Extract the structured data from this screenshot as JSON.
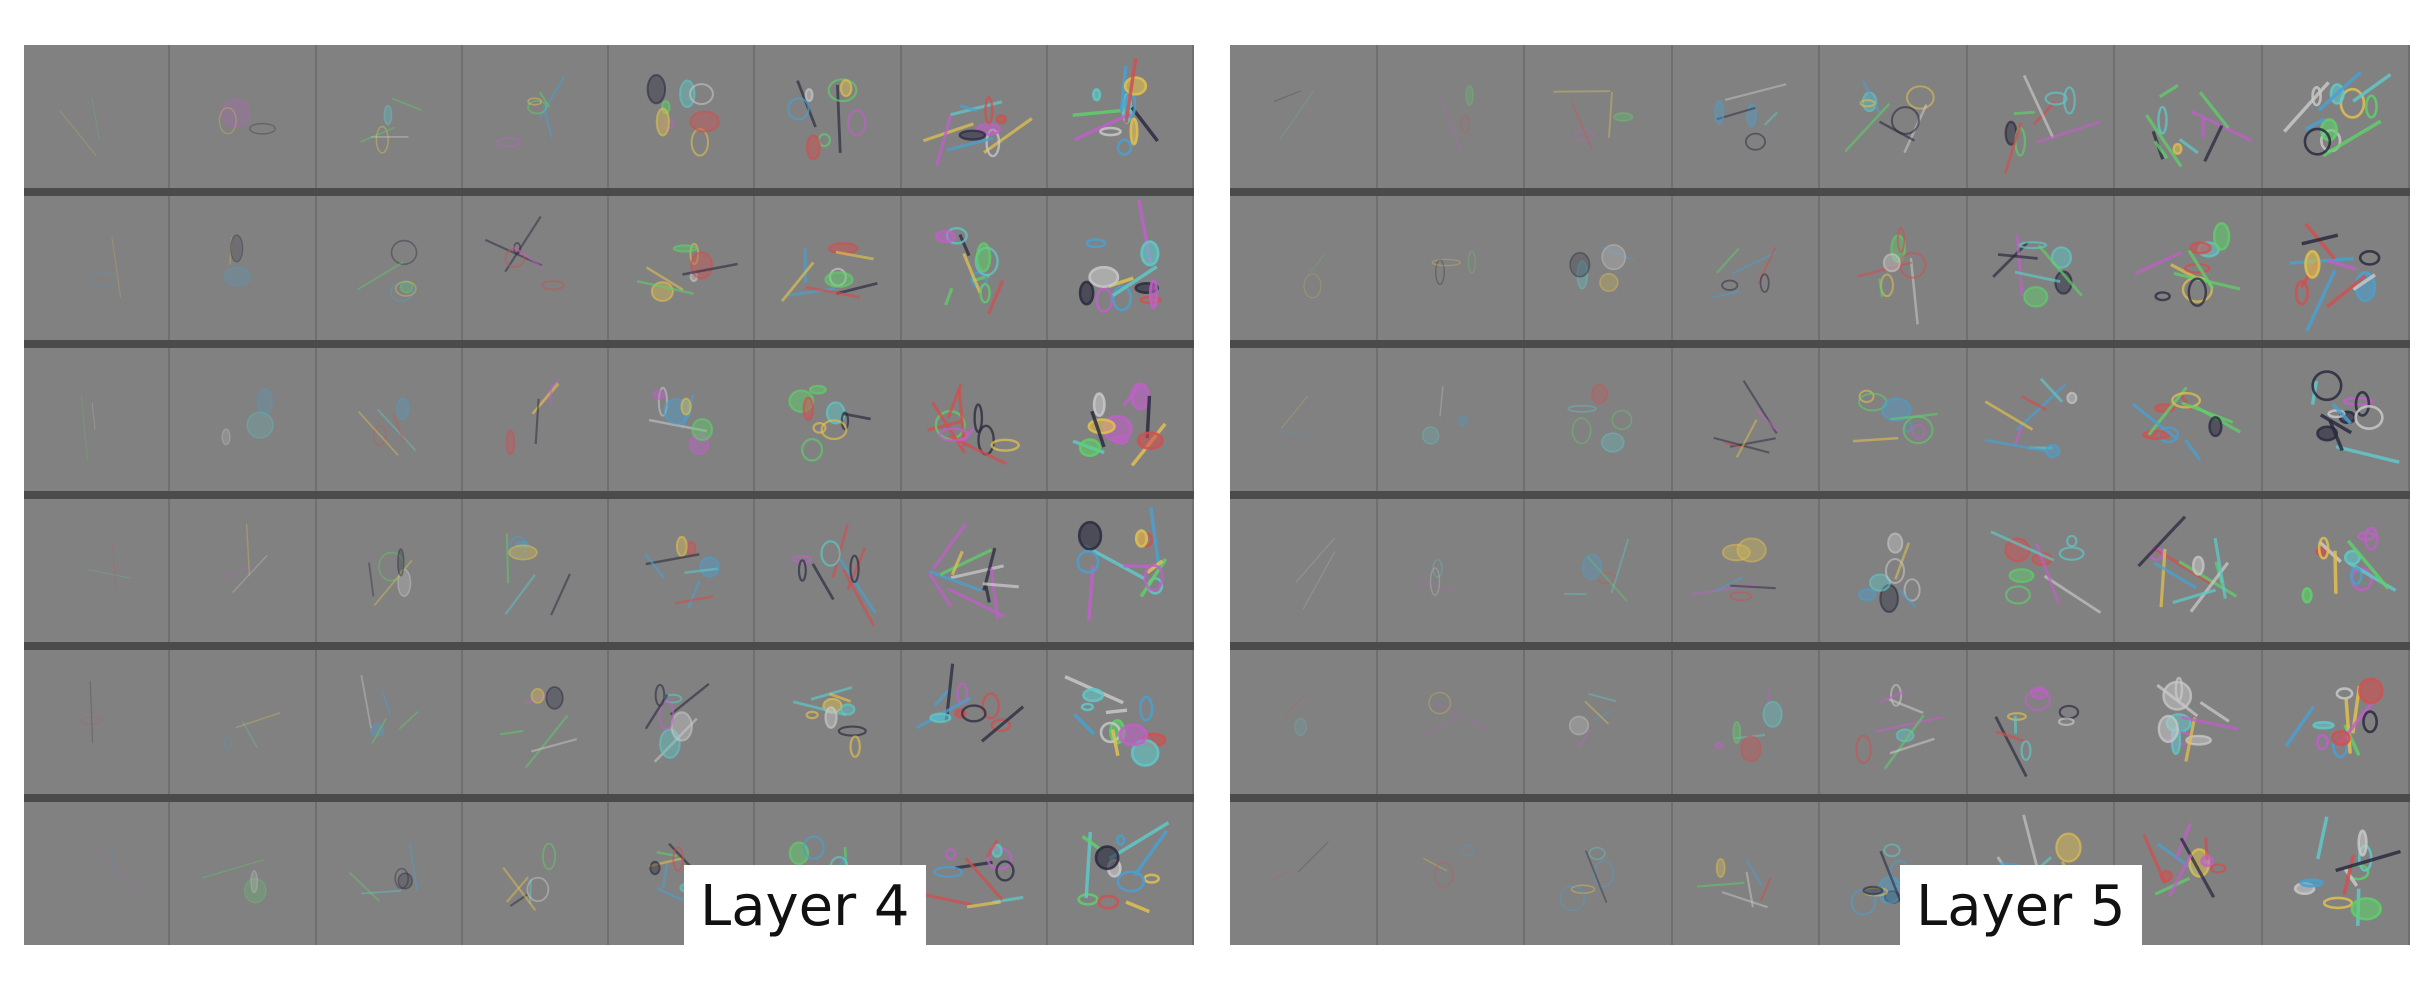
{
  "figure": {
    "panels": [
      {
        "label": "Layer 4",
        "rows": 6,
        "cols": 8
      },
      {
        "label": "Layer 5",
        "rows": 6,
        "cols": 8
      }
    ]
  },
  "colors": {
    "background": "#ffffff",
    "panel_gray": "#7d7d7d",
    "row_separator": "#4b4b4b",
    "label_bg": "#ffffff",
    "label_text": "#111111"
  }
}
